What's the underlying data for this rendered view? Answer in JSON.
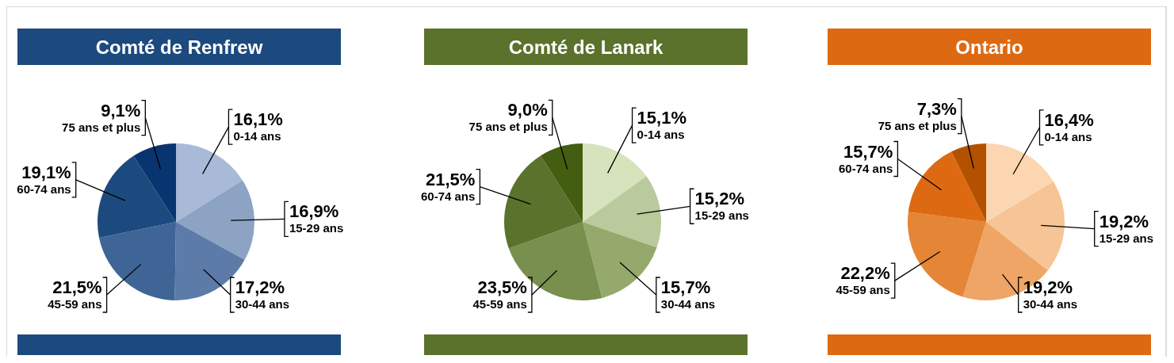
{
  "chart_data": [
    {
      "type": "pie",
      "title": "Comté de Renfrew",
      "categories": [
        "0-14 ans",
        "15-29 ans",
        "30-44 ans",
        "45-59 ans",
        "60-74 ans",
        "75 ans et plus"
      ],
      "values": [
        16.1,
        16.9,
        17.2,
        21.5,
        19.1,
        9.1
      ],
      "value_labels": [
        "16,1%",
        "16,9%",
        "17,2%",
        "21,5%",
        "19,1%",
        "9,1%"
      ],
      "colors": [
        "#a9bad8",
        "#8ca3c4",
        "#5d7ba8",
        "#3e6596",
        "#1c4a7e",
        "#08346f"
      ]
    },
    {
      "type": "pie",
      "title": "Comté de Lanark",
      "categories": [
        "0-14 ans",
        "15-29 ans",
        "30-44 ans",
        "45-59 ans",
        "60-74 ans",
        "75 ans et plus"
      ],
      "values": [
        15.1,
        15.2,
        15.7,
        23.5,
        21.5,
        9.0
      ],
      "value_labels": [
        "15,1%",
        "15,2%",
        "15,7%",
        "23,5%",
        "21,5%",
        "9,0%"
      ],
      "colors": [
        "#d7e3bd",
        "#b9cb9c",
        "#96a96c",
        "#788f4d",
        "#5a722b",
        "#435e10"
      ]
    },
    {
      "type": "pie",
      "title": "Ontario",
      "categories": [
        "0-14 ans",
        "15-29 ans",
        "30-44 ans",
        "45-59 ans",
        "60-74 ans",
        "75 ans et plus"
      ],
      "values": [
        16.4,
        19.2,
        19.2,
        22.2,
        15.7,
        7.3
      ],
      "value_labels": [
        "16,4%",
        "19,2%",
        "19,2%",
        "22,2%",
        "15,7%",
        "7,3%"
      ],
      "colors": [
        "#fbd6b0",
        "#f6c495",
        "#eea565",
        "#e58536",
        "#dd6a12",
        "#b35100"
      ]
    }
  ]
}
